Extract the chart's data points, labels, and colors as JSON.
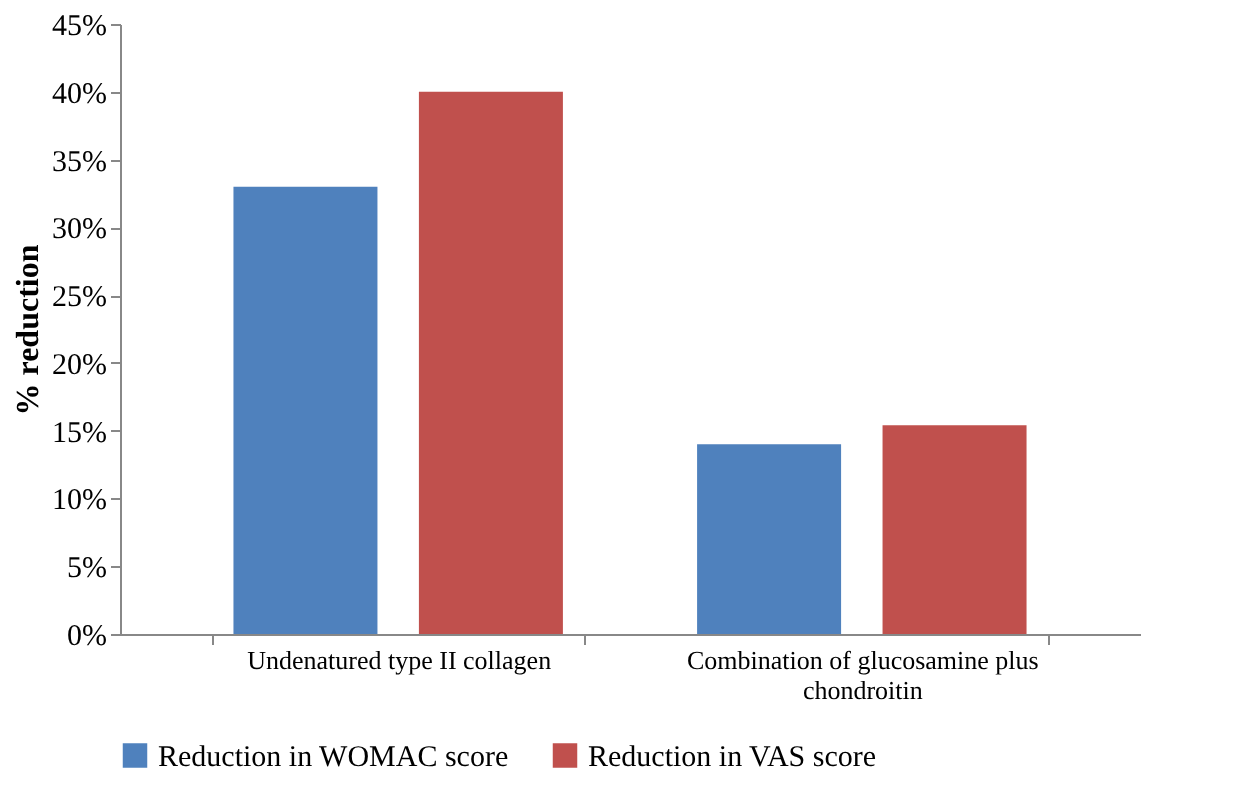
{
  "chart_data": {
    "type": "bar",
    "ylabel": "% reduction",
    "categories": [
      "Undenatured type II collagen",
      "Combination of glucosamine plus chondroitin"
    ],
    "series": [
      {
        "name": "Reduction in WOMAC score",
        "color": "#4f81bd",
        "values": [
          33,
          14
        ]
      },
      {
        "name": "Reduction in VAS score",
        "color": "#c0504d",
        "values": [
          40,
          15.4
        ]
      }
    ],
    "ylim": [
      0,
      45
    ],
    "yticks": [
      {
        "value": 0,
        "label": "0%"
      },
      {
        "value": 5,
        "label": "5%"
      },
      {
        "value": 10,
        "label": "10%"
      },
      {
        "value": 15,
        "label": "15%"
      },
      {
        "value": 20,
        "label": "20%"
      },
      {
        "value": 25,
        "label": "25%"
      },
      {
        "value": 30,
        "label": "30%"
      },
      {
        "value": 35,
        "label": "35%"
      },
      {
        "value": 40,
        "label": "40%"
      },
      {
        "value": 45,
        "label": "45%"
      }
    ],
    "grid": false,
    "legend": "bottom"
  }
}
